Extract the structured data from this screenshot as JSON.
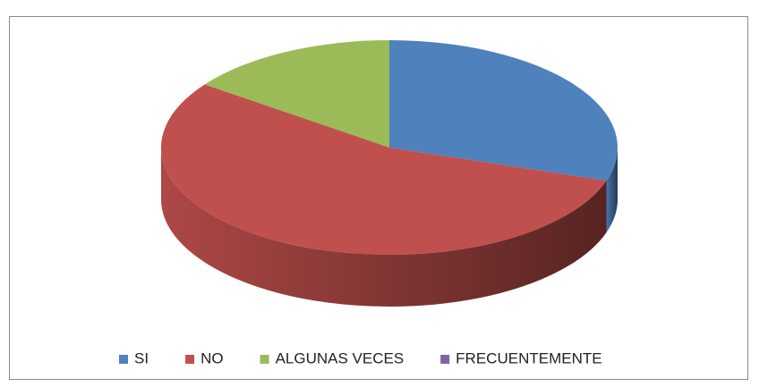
{
  "chart_data": {
    "type": "pie3d",
    "categories": [
      "SI",
      "NO",
      "ALGUNAS VECES",
      "FRECUENTEMENTE"
    ],
    "values": [
      30,
      55,
      15,
      0
    ],
    "colors": [
      "#4F81BD",
      "#C0504D",
      "#9BBB59",
      "#8064A2"
    ],
    "legend": "bottom"
  }
}
